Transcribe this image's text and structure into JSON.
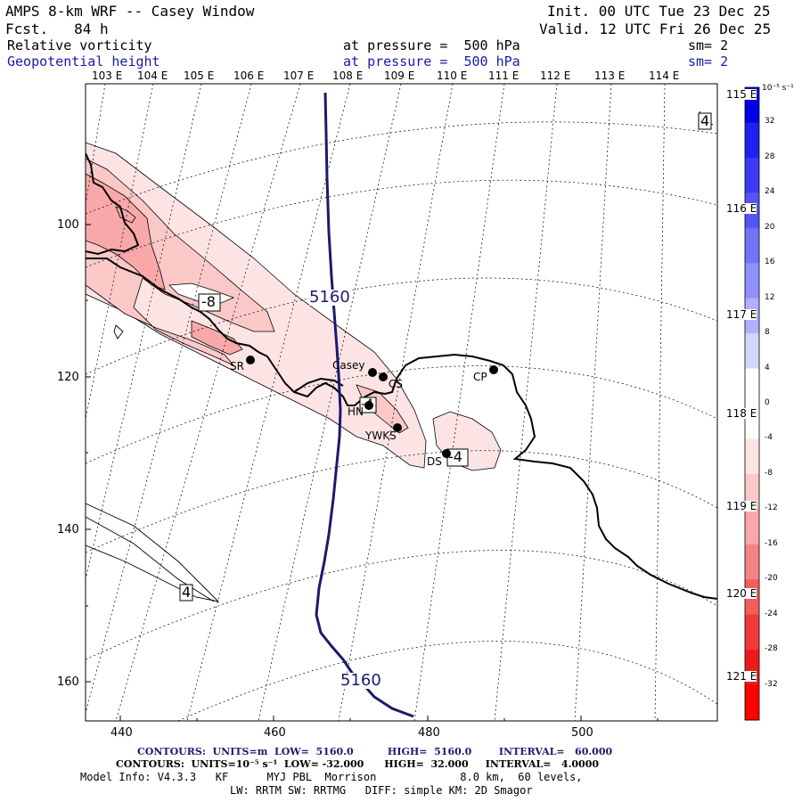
{
  "header": {
    "title": "AMPS 8-km WRF -- Casey Window",
    "fcst": "Fcst.   84 h",
    "init": "Init. 00 UTC Tue 23 Dec 25",
    "valid": "Valid. 12 UTC Fri 26 Dec 25",
    "field1_name": "Relative vorticity",
    "field1_level": "at pressure =  500 hPa",
    "field1_sm": "sm= 2",
    "field2_name": "Geopotential height",
    "field2_level": "at pressure =  500 hPa",
    "field2_sm": "sm= 2"
  },
  "lon_labels_top": [
    "103 E",
    "104 E",
    "105 E",
    "106 E",
    "107 E",
    "108 E",
    "109 E",
    "110 E",
    "111 E",
    "112 E",
    "113 E",
    "114 E"
  ],
  "lon_labels_right": [
    "115 E",
    "116 E",
    "117 E",
    "118 E",
    "119 E",
    "120 E",
    "121 E"
  ],
  "x_ticks": [
    "440",
    "460",
    "480",
    "500"
  ],
  "y_ticks": [
    "100",
    "120",
    "140",
    "160"
  ],
  "stations": [
    {
      "label": "SR"
    },
    {
      "label": "Casey"
    },
    {
      "label": "CS"
    },
    {
      "label": "CP"
    },
    {
      "label": "HN"
    },
    {
      "label": "YWKS"
    },
    {
      "label": "DS"
    }
  ],
  "contour_labels": {
    "height_1": "5160",
    "height_2": "5160",
    "vort_minus8": "-8",
    "vort_minus4_a": "-4",
    "vort_minus4_b": "-4",
    "vort_4_a": "4",
    "vort_4_b": "4"
  },
  "colorbar": {
    "unit": "10⁻⁵ s⁻¹",
    "labels": [
      "32",
      "28",
      "24",
      "20",
      "16",
      "12",
      "8",
      "4",
      "0",
      "-4",
      "-8",
      "-12",
      "-16",
      "-20",
      "-24",
      "-28",
      "-32"
    ],
    "colors": [
      "#0000e6",
      "#2020f0",
      "#3a3af2",
      "#5555f5",
      "#7373f7",
      "#9090f9",
      "#b0b0fb",
      "#d4d4fd",
      "#ffffff",
      "#ffffff",
      "#fde4e4",
      "#fbc8c8",
      "#f8a8a8",
      "#f58484",
      "#f25e5e",
      "#f03a3a",
      "#ee1a1a",
      "#ff0000"
    ]
  },
  "footer": {
    "line1": "CONTOURS:  UNITS=m  LOW=  5160.0          HIGH=  5160.0        INTERVAL=   60.000",
    "line2": "CONTOURS:  UNITS=10⁻⁵ s⁻¹  LOW= -32.000      HIGH=  32.000     INTERVAL=   4.0000",
    "line3": "Model Info: V4.3.3   KF      MYJ PBL  Morrison             8.0 km,  60 levels,",
    "line4": "LW: RRTM SW: RRTMG   DIFF: simple KM: 2D Smagor"
  }
}
